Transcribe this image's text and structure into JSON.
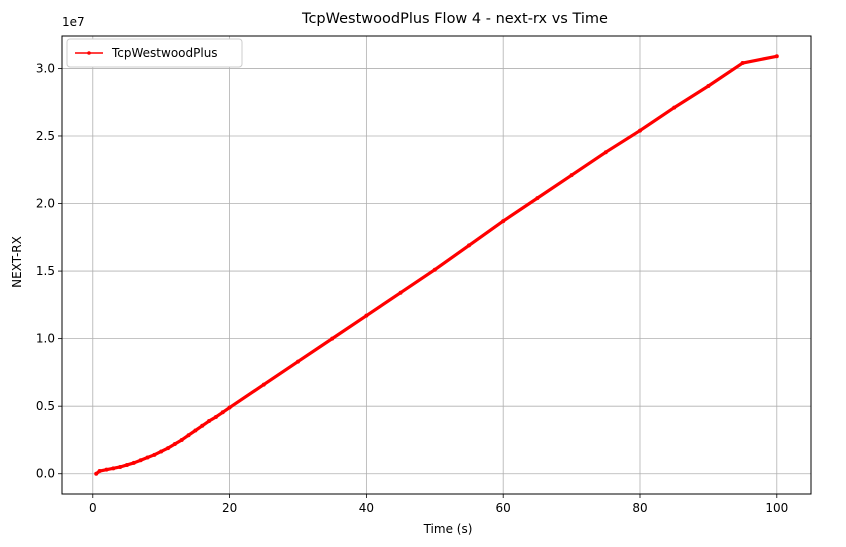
{
  "chart_data": {
    "type": "line",
    "title": "TcpWestwoodPlus Flow 4 - next-rx vs Time",
    "xlabel": "Time (s)",
    "ylabel": "NEXT-RX",
    "y_offset_label": "1e7",
    "xlim": [
      -4.5,
      105
    ],
    "ylim": [
      -0.15,
      3.24
    ],
    "y_scale_exponent": 7,
    "x_ticks": [
      0,
      20,
      40,
      60,
      80,
      100
    ],
    "x_tick_labels": [
      "0",
      "20",
      "40",
      "60",
      "80",
      "100"
    ],
    "y_ticks": [
      0.0,
      0.5,
      1.0,
      1.5,
      2.0,
      2.5,
      3.0
    ],
    "y_tick_labels": [
      "0.0",
      "0.5",
      "1.0",
      "1.5",
      "2.0",
      "2.5",
      "3.0"
    ],
    "grid": true,
    "legend_position": "upper-left",
    "series": [
      {
        "name": "TcpWestwoodPlus",
        "color": "#ff0000",
        "marker": "dot",
        "x": [
          0.5,
          1,
          2,
          3,
          4,
          5,
          6,
          7,
          8,
          9,
          10,
          11,
          12,
          13,
          14,
          15,
          16,
          17,
          18,
          19,
          20,
          25,
          30,
          35,
          40,
          45,
          50,
          55,
          60,
          65,
          70,
          75,
          80,
          85,
          90,
          95,
          100
        ],
        "y": [
          0.0,
          0.02,
          0.03,
          0.04,
          0.05,
          0.065,
          0.08,
          0.1,
          0.12,
          0.14,
          0.165,
          0.19,
          0.22,
          0.25,
          0.285,
          0.32,
          0.355,
          0.39,
          0.42,
          0.455,
          0.49,
          0.66,
          0.83,
          1.0,
          1.17,
          1.34,
          1.51,
          1.69,
          1.87,
          2.04,
          2.21,
          2.38,
          2.54,
          2.71,
          2.87,
          3.04,
          3.09
        ]
      }
    ]
  }
}
